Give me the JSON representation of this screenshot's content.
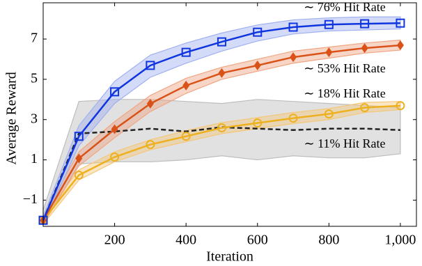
{
  "chart_data": {
    "type": "line",
    "x_label": "Iteration",
    "y_label": "Average Reward",
    "x": [
      0,
      100,
      200,
      300,
      400,
      500,
      600,
      700,
      800,
      900,
      1000
    ],
    "xlim": [
      0,
      1045
    ],
    "ylim": [
      -2.3,
      8.8
    ],
    "xticks": [
      200,
      400,
      600,
      800,
      {
        "value": 1000,
        "label": "1,000"
      }
    ],
    "yticks": [
      {
        "value": -1,
        "label": "−1"
      },
      1,
      3,
      5,
      7
    ],
    "annotations": [
      "∼ 76% Hit Rate",
      "∼ 53% Hit Rate",
      "∼ 18% Hit Rate",
      "∼ 11% Hit Rate"
    ],
    "series": [
      {
        "color": "#404040",
        "band_color": "#bdbdbd",
        "marker": "none",
        "dashed": true,
        "values": [
          -2.0,
          2.31,
          2.41,
          2.55,
          2.41,
          2.62,
          2.55,
          2.48,
          2.55,
          2.55,
          2.48
        ],
        "lower": [
          -2.2,
          0.8,
          0.9,
          0.9,
          1.0,
          1.2,
          1.0,
          1.2,
          1.1,
          1.1,
          1.3
        ],
        "upper": [
          -1.5,
          3.9,
          4.0,
          4.0,
          3.9,
          3.8,
          4.0,
          3.9,
          3.8,
          3.7,
          3.6
        ]
      },
      {
        "color": "#edb120",
        "band_color": "#f5c77a",
        "marker": "circle",
        "dashed": false,
        "values": [
          -2.0,
          0.24,
          1.14,
          1.76,
          2.17,
          2.59,
          2.83,
          3.07,
          3.28,
          3.59,
          3.69
        ],
        "lower": [
          -2.2,
          0.0,
          0.9,
          1.5,
          1.9,
          2.3,
          2.55,
          2.8,
          3.0,
          3.35,
          3.5
        ],
        "upper": [
          -1.8,
          0.5,
          1.4,
          2.0,
          2.45,
          2.85,
          3.1,
          3.35,
          3.55,
          3.85,
          3.9
        ]
      },
      {
        "color": "#d95319",
        "band_color": "#f0a582",
        "marker": "diamond",
        "dashed": false,
        "values": [
          -2.0,
          1.07,
          2.52,
          3.79,
          4.69,
          5.31,
          5.69,
          6.1,
          6.34,
          6.55,
          6.69
        ],
        "lower": [
          -2.2,
          0.7,
          2.1,
          3.4,
          4.3,
          5.0,
          5.4,
          5.8,
          6.05,
          6.3,
          6.45
        ],
        "upper": [
          -1.8,
          1.4,
          2.9,
          4.2,
          5.05,
          5.6,
          6.0,
          6.4,
          6.6,
          6.8,
          6.95
        ]
      },
      {
        "color": "#0f35e0",
        "band_color": "#9fb0f0",
        "marker": "square",
        "dashed": false,
        "values": [
          -2.0,
          2.17,
          4.38,
          5.69,
          6.34,
          6.86,
          7.34,
          7.59,
          7.72,
          7.76,
          7.79
        ],
        "lower": [
          -2.2,
          1.7,
          3.8,
          5.1,
          5.8,
          6.4,
          6.9,
          7.25,
          7.4,
          7.45,
          7.5
        ],
        "upper": [
          -1.8,
          2.7,
          4.9,
          6.2,
          6.8,
          7.3,
          7.7,
          7.95,
          8.05,
          8.1,
          8.1
        ]
      }
    ]
  }
}
